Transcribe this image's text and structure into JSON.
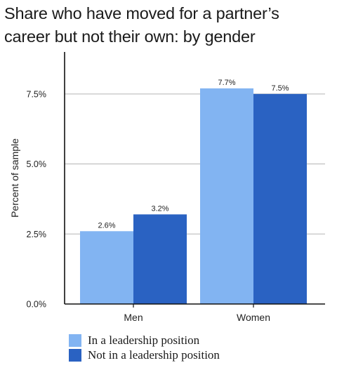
{
  "chart_data": {
    "type": "bar",
    "title": [
      "Share who have moved for a partner’s",
      "career but not their own: by gender"
    ],
    "ylabel": "Percent of sample",
    "categories": [
      "Men",
      "Women"
    ],
    "series": [
      {
        "name": "In a leadership position",
        "values": [
          2.6,
          7.7
        ],
        "labels": [
          "2.6%",
          "7.7%"
        ],
        "color": "#82b4f2"
      },
      {
        "name": "Not in a leadership position",
        "values": [
          3.2,
          7.5
        ],
        "labels": [
          "3.2%",
          "7.5%"
        ],
        "color": "#2a62c2"
      }
    ],
    "ylim": [
      0,
      9
    ],
    "yticks": [
      {
        "value": 0,
        "label": "0.0%"
      },
      {
        "value": 2.5,
        "label": "2.5%"
      },
      {
        "value": 5,
        "label": "5.0%"
      },
      {
        "value": 7.5,
        "label": "7.5%"
      }
    ],
    "grid": true,
    "legend_position": "bottom"
  }
}
